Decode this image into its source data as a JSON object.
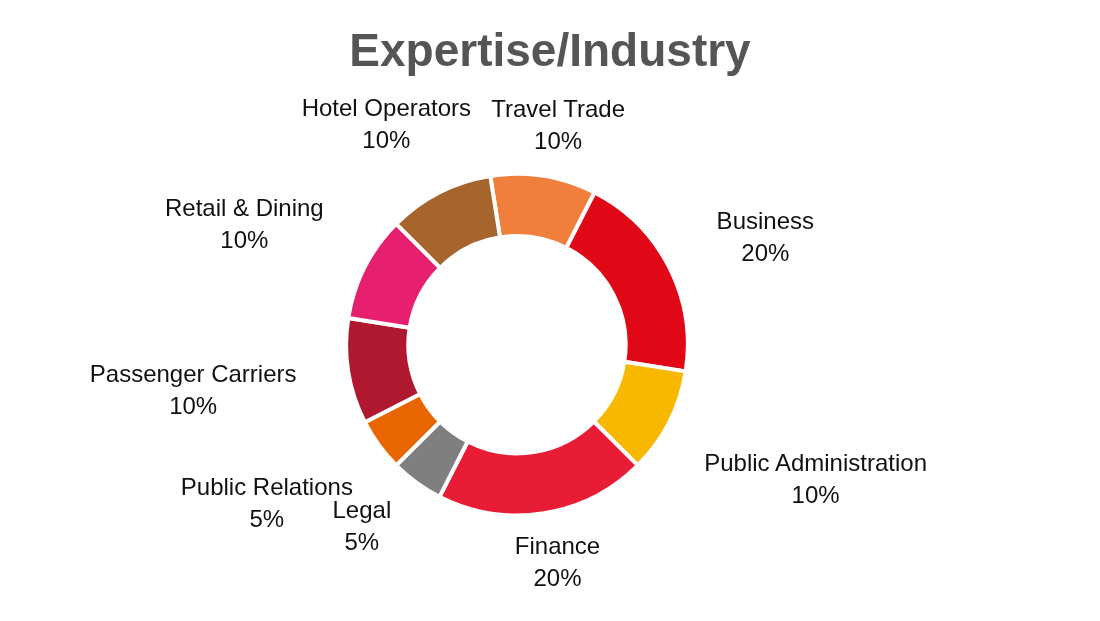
{
  "chart_data": {
    "type": "donut",
    "title": "Expertise/Industry",
    "categories": [
      "Travel Trade",
      "Business",
      "Public Administration",
      "Finance",
      "Legal",
      "Public Relations",
      "Passenger Carriers",
      "Retail & Dining",
      "Hotel Operators"
    ],
    "values": [
      10,
      20,
      10,
      20,
      5,
      5,
      10,
      10,
      10
    ],
    "value_labels": [
      "10%",
      "20%",
      "10%",
      "20%",
      "5%",
      "5%",
      "10%",
      "10%",
      "10%"
    ],
    "colors": [
      "#f07f3c",
      "#e00717",
      "#f8b800",
      "#e81c35",
      "#7f7f7f",
      "#e86500",
      "#b0182f",
      "#e61f6e",
      "#a6652c"
    ],
    "legend": false
  }
}
